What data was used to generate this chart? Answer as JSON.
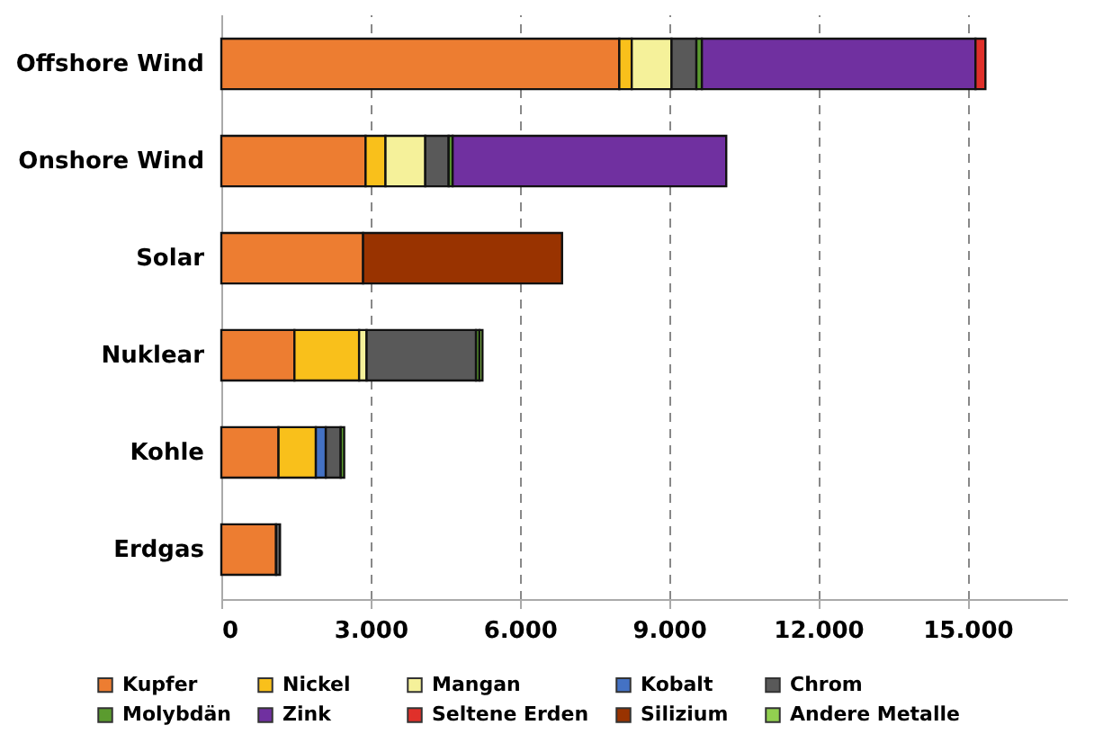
{
  "chart_data": {
    "type": "bar",
    "orientation": "horizontal",
    "stacked": true,
    "categories": [
      "Offshore Wind",
      "Onshore Wind",
      "Solar",
      "Nuklear",
      "Kohle",
      "Erdgas"
    ],
    "series": [
      {
        "name": "Kupfer",
        "color": "#ed7d31",
        "values": [
          8000,
          2900,
          2850,
          1470,
          1150,
          1100
        ]
      },
      {
        "name": "Nickel",
        "color": "#f9c01b",
        "values": [
          250,
          400,
          null,
          1300,
          750,
          null
        ]
      },
      {
        "name": "Mangan",
        "color": "#f5f19a",
        "values": [
          800,
          800,
          null,
          150,
          null,
          null
        ]
      },
      {
        "name": "Kobalt",
        "color": "#4472c4",
        "values": [
          null,
          null,
          null,
          null,
          200,
          null
        ]
      },
      {
        "name": "Chrom",
        "color": "#595959",
        "values": [
          500,
          470,
          null,
          2200,
          300,
          80
        ]
      },
      {
        "name": "Molybdän",
        "color": "#5b9b2f",
        "values": [
          110,
          80,
          null,
          70,
          70,
          null
        ]
      },
      {
        "name": "Zink",
        "color": "#7030a0",
        "values": [
          5500,
          5500,
          null,
          null,
          null,
          null
        ]
      },
      {
        "name": "Seltene Erden",
        "color": "#e0302a",
        "values": [
          200,
          null,
          null,
          null,
          null,
          null
        ]
      },
      {
        "name": "Silizium",
        "color": "#993300",
        "values": [
          null,
          null,
          4000,
          null,
          null,
          null
        ]
      },
      {
        "name": "Andere Metalle",
        "color": "#92d050",
        "values": [
          null,
          null,
          null,
          60,
          null,
          null
        ]
      }
    ],
    "xlim": [
      0,
      17000
    ],
    "xticks": [
      {
        "value": 0,
        "label": "0"
      },
      {
        "value": 3000,
        "label": "3.000"
      },
      {
        "value": 6000,
        "label": "6.000"
      },
      {
        "value": 9000,
        "label": "9.000"
      },
      {
        "value": 12000,
        "label": "12.000"
      },
      {
        "value": 15000,
        "label": "15.000"
      }
    ],
    "grid": "x",
    "legend": "bottom"
  }
}
